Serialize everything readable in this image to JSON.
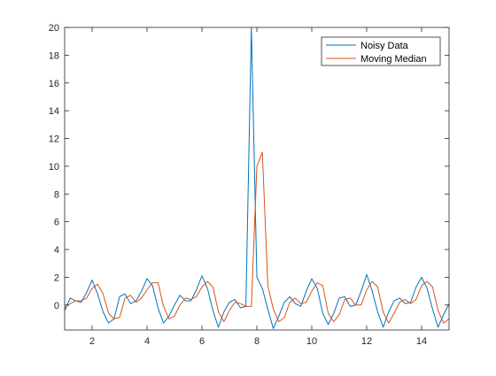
{
  "chart_data": {
    "type": "line",
    "title": "",
    "xlabel": "",
    "ylabel": "",
    "xlim": [
      1,
      15
    ],
    "ylim": [
      -1.8,
      20
    ],
    "xticks": [
      2,
      4,
      6,
      8,
      10,
      12,
      14
    ],
    "yticks": [
      0,
      2,
      4,
      6,
      8,
      10,
      12,
      14,
      16,
      18,
      20
    ],
    "grid": false,
    "legend_position": "top-right",
    "series": [
      {
        "name": "Noisy Data",
        "color": "#0072BD",
        "x": [
          1.0,
          1.2,
          1.4,
          1.6,
          1.8,
          2.0,
          2.2,
          2.4,
          2.6,
          2.8,
          3.0,
          3.2,
          3.4,
          3.6,
          3.8,
          4.0,
          4.2,
          4.4,
          4.6,
          4.8,
          5.0,
          5.2,
          5.4,
          5.6,
          5.8,
          6.0,
          6.2,
          6.4,
          6.6,
          6.8,
          7.0,
          7.2,
          7.4,
          7.6,
          7.8,
          8.0,
          8.2,
          8.4,
          8.6,
          8.8,
          9.0,
          9.2,
          9.4,
          9.6,
          9.8,
          10.0,
          10.2,
          10.4,
          10.6,
          10.8,
          11.0,
          11.2,
          11.4,
          11.6,
          11.8,
          12.0,
          12.2,
          12.4,
          12.6,
          12.8,
          13.0,
          13.2,
          13.4,
          13.6,
          13.8,
          14.0,
          14.2,
          14.4,
          14.6,
          14.8,
          15.0
        ],
        "y": [
          -0.4,
          0.5,
          0.3,
          0.2,
          0.9,
          1.8,
          0.8,
          -0.5,
          -1.3,
          -1.0,
          0.6,
          0.8,
          0.1,
          0.3,
          1.0,
          1.9,
          1.4,
          -0.2,
          -1.3,
          -0.8,
          0.0,
          0.7,
          0.3,
          0.3,
          1.1,
          2.1,
          1.2,
          -0.4,
          -1.6,
          -0.5,
          0.2,
          0.4,
          -0.2,
          -0.1,
          20.0,
          2.0,
          1.2,
          -0.3,
          -1.7,
          -0.8,
          0.2,
          0.6,
          0.1,
          -0.1,
          1.0,
          1.9,
          1.2,
          -0.6,
          -1.4,
          -0.6,
          0.5,
          0.6,
          -0.1,
          0.0,
          1.0,
          2.2,
          1.0,
          -0.5,
          -1.6,
          -0.5,
          0.3,
          0.5,
          0.1,
          0.2,
          1.3,
          2.0,
          1.2,
          -0.3,
          -1.6,
          -0.7,
          0.1
        ]
      },
      {
        "name": "Moving Median",
        "color": "#D95319",
        "x": [
          1.0,
          1.2,
          1.4,
          1.6,
          1.8,
          2.0,
          2.2,
          2.4,
          2.6,
          2.8,
          3.0,
          3.2,
          3.4,
          3.6,
          3.8,
          4.0,
          4.2,
          4.4,
          4.6,
          4.8,
          5.0,
          5.2,
          5.4,
          5.6,
          5.8,
          6.0,
          6.2,
          6.4,
          6.6,
          6.8,
          7.0,
          7.2,
          7.4,
          7.6,
          7.8,
          8.0,
          8.1,
          8.2,
          8.4,
          8.6,
          8.8,
          9.0,
          9.2,
          9.4,
          9.6,
          9.8,
          10.0,
          10.2,
          10.4,
          10.6,
          10.8,
          11.0,
          11.2,
          11.4,
          11.6,
          11.8,
          12.0,
          12.2,
          12.4,
          12.6,
          12.8,
          13.0,
          13.2,
          13.4,
          13.6,
          13.8,
          14.0,
          14.2,
          14.4,
          14.6,
          14.8,
          15.0
        ],
        "y": [
          -0.2,
          0.1,
          0.3,
          0.3,
          0.5,
          1.2,
          1.5,
          0.8,
          -0.6,
          -1.0,
          -0.9,
          0.5,
          0.7,
          0.2,
          0.5,
          1.1,
          1.6,
          1.6,
          -0.1,
          -1.0,
          -0.8,
          0.0,
          0.5,
          0.4,
          0.6,
          1.3,
          1.7,
          1.3,
          -0.5,
          -1.2,
          -0.4,
          0.2,
          0.1,
          -0.1,
          -0.1,
          10.0,
          10.5,
          11.0,
          1.4,
          -0.3,
          -1.2,
          -0.9,
          0.2,
          0.5,
          0.1,
          0.2,
          1.0,
          1.6,
          1.4,
          -0.6,
          -1.2,
          -0.7,
          0.4,
          0.5,
          0.0,
          0.0,
          1.1,
          1.7,
          1.3,
          -0.5,
          -1.3,
          -0.6,
          0.2,
          0.4,
          0.1,
          0.4,
          1.4,
          1.7,
          1.3,
          -0.4,
          -1.3,
          -1.0
        ]
      }
    ]
  }
}
